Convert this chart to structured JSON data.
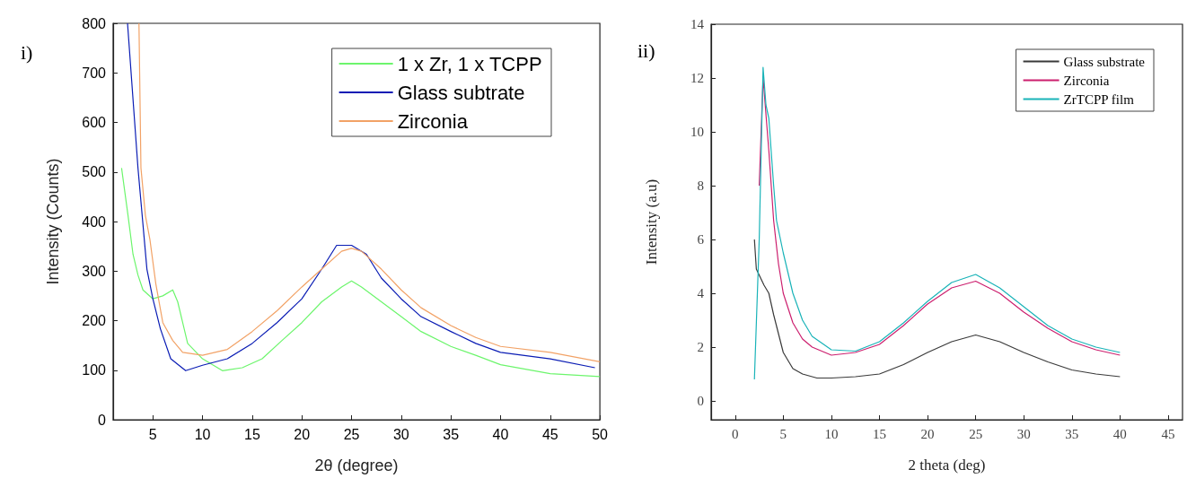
{
  "chart_data": [
    {
      "type": "line",
      "title": "i)",
      "xlabel": "2θ (degree)",
      "ylabel": "Intensity (Counts)",
      "xlim": [
        1,
        50
      ],
      "xticks": [
        5,
        10,
        15,
        20,
        25,
        30,
        35,
        40,
        45,
        50
      ],
      "ylim": [
        0,
        800
      ],
      "yticks": [
        0,
        100,
        200,
        300,
        400,
        500,
        600,
        700,
        800
      ],
      "grid": false,
      "legend": "top right",
      "marker": "none",
      "line_style": "solid",
      "series": [
        {
          "name": "1 x Zr, 1 x TCPP",
          "color": "#6cf56c",
          "x": [
            1.85,
            2.5,
            3,
            3.5,
            4,
            5,
            6,
            7,
            7.5,
            8,
            8.5,
            10,
            12,
            14,
            16,
            18,
            20,
            22,
            24,
            25,
            26,
            28,
            30,
            32,
            35,
            37.5,
            40,
            45,
            50
          ],
          "values": [
            508,
            412,
            334,
            292,
            262,
            244,
            250,
            262,
            238,
            196,
            154,
            123,
            99,
            105,
            123,
            160,
            196,
            238,
            268,
            280,
            268,
            238,
            208,
            178,
            148,
            130,
            111,
            93,
            87
          ]
        },
        {
          "name": "Glass subtrate",
          "color": "#0a1cb4",
          "x": [
            2.45,
            3.5,
            4.4,
            5,
            5.75,
            6.8,
            8.3,
            10,
            12.5,
            15,
            17.5,
            20,
            22,
            23.5,
            25,
            26.5,
            28,
            30,
            32,
            35,
            37.5,
            40,
            45,
            49.5
          ],
          "values": [
            800,
            508,
            304,
            244,
            184,
            123,
            99,
            110,
            123,
            154,
            196,
            244,
            304,
            352,
            352,
            334,
            286,
            244,
            208,
            178,
            154,
            136,
            123,
            105
          ]
        },
        {
          "name": "Zirconia",
          "color": "#f2a266",
          "x": [
            3.6,
            3.8,
            4.25,
            4.7,
            5.3,
            6,
            7,
            8,
            10,
            12.5,
            15,
            17.5,
            20,
            22,
            24,
            25,
            26,
            28,
            30,
            32,
            35,
            37.5,
            40,
            45,
            50
          ],
          "values": [
            800,
            508,
            412,
            364,
            274,
            196,
            160,
            136,
            130,
            142,
            178,
            220,
            268,
            304,
            340,
            346,
            340,
            304,
            262,
            226,
            190,
            166,
            148,
            136,
            117
          ]
        }
      ]
    },
    {
      "type": "line",
      "title": "ii)",
      "xlabel": "2 theta (deg)",
      "ylabel": "Intensity (a.u)",
      "xlim": [
        -2.5,
        46.5
      ],
      "xticks": [
        0,
        5,
        10,
        15,
        20,
        25,
        30,
        35,
        40,
        45
      ],
      "ylim": [
        -0.7,
        14
      ],
      "yticks": [
        0,
        2,
        4,
        6,
        8,
        10,
        12,
        14
      ],
      "grid": false,
      "legend": "top right",
      "marker": "none",
      "line_style": "solid",
      "series": [
        {
          "name": "Glass substrate",
          "color": "#3a3a3a",
          "x": [
            2,
            2.2,
            3,
            3.5,
            4,
            5,
            6,
            7,
            8.5,
            10,
            12.5,
            15,
            17.5,
            20,
            22.5,
            25,
            27.5,
            30,
            32.5,
            35,
            37.5,
            40
          ],
          "values": [
            6.0,
            4.9,
            4.3,
            4.0,
            3.2,
            1.8,
            1.2,
            1.0,
            0.85,
            0.85,
            0.9,
            1.0,
            1.35,
            1.8,
            2.2,
            2.45,
            2.2,
            1.8,
            1.45,
            1.15,
            1.0,
            0.9
          ]
        },
        {
          "name": "Zirconia",
          "color": "#cc1f6e",
          "x": [
            2.5,
            2.9,
            3.5,
            4,
            4.5,
            5,
            6,
            7,
            8,
            10,
            12.5,
            15,
            17.5,
            20,
            22.5,
            25,
            27.5,
            30,
            32.5,
            35,
            37.5,
            40
          ],
          "values": [
            8,
            12.0,
            9.3,
            6.7,
            5.1,
            4.0,
            2.9,
            2.3,
            2.0,
            1.7,
            1.8,
            2.1,
            2.8,
            3.6,
            4.2,
            4.45,
            4.0,
            3.3,
            2.7,
            2.2,
            1.9,
            1.7
          ]
        },
        {
          "name": "ZrTCPP film",
          "color": "#19b3b8",
          "x": [
            2,
            2.5,
            2.9,
            3.2,
            3.5,
            4,
            4.3,
            5,
            6,
            7,
            8,
            10,
            12.5,
            15,
            17.5,
            20,
            22.5,
            25,
            27.5,
            30,
            32.5,
            35,
            37.5,
            40
          ],
          "values": [
            0.8,
            6,
            12.4,
            11,
            10.5,
            8,
            6.7,
            5.5,
            4.0,
            3.0,
            2.4,
            1.9,
            1.85,
            2.2,
            2.9,
            3.7,
            4.4,
            4.7,
            4.2,
            3.5,
            2.8,
            2.3,
            2.0,
            1.8
          ]
        }
      ]
    }
  ]
}
